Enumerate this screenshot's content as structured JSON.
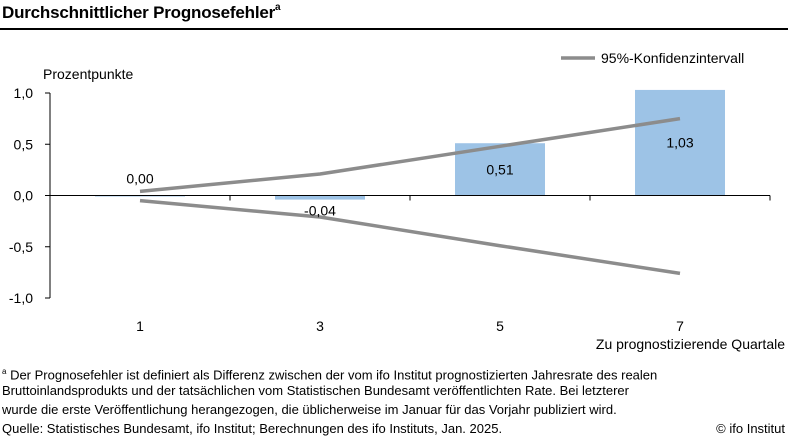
{
  "title": "Durchschnittlicher Prognosefehler",
  "title_sup": "a",
  "chart_data": {
    "type": "bar",
    "title": "Durchschnittlicher Prognosefehler",
    "ylabel": "Prozentpunkte",
    "xlabel": "Zu prognostizierende Quartale",
    "categories": [
      "1",
      "3",
      "5",
      "7"
    ],
    "ylim": [
      -1.0,
      1.0
    ],
    "yticks": [
      1.0,
      0.5,
      0.0,
      -0.5,
      -1.0
    ],
    "ytick_labels": [
      "1,0",
      "0,5",
      "0,0",
      "-0,5",
      "-1,0"
    ],
    "series": [
      {
        "type": "bar",
        "values": [
          0.0,
          -0.04,
          0.51,
          1.03
        ],
        "labels": [
          "0,00",
          "-0,04",
          "0,51",
          "1,03"
        ],
        "color": "#9DC3E6"
      },
      {
        "type": "line",
        "name": "95%-Konfidenzintervall",
        "upper": [
          0.04,
          0.21,
          0.48,
          0.75
        ],
        "lower": [
          -0.05,
          -0.21,
          -0.49,
          -0.76
        ],
        "color": "#8C8C8C"
      }
    ],
    "legend": "top-right",
    "grid": false
  },
  "footnotes": {
    "line1_sup": "a",
    "line1": " Der Prognosefehler ist definiert als Differenz zwischen der vom ifo Institut prognostizierten Jahresrate des realen",
    "line2": "Bruttoinlandsprodukts und der tatsächlichen vom Statistischen Bundesamt veröffentlichten Rate. Bei letzterer",
    "line3": "wurde die erste Veröffentlichung herangezogen, die üblicherweise im Januar für das Vorjahr publiziert wird.",
    "source": "Quelle: Statistisches Bundesamt, ifo Institut; Berechnungen des ifo Instituts, Jan. 2025.",
    "copyright": "© ifo Institut"
  }
}
